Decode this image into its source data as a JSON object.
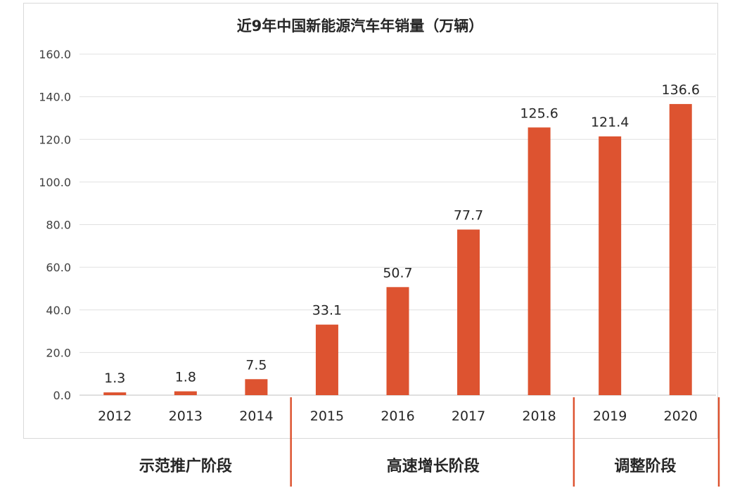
{
  "chart_data": {
    "type": "bar",
    "title": "近9年中国新能源汽车年销量（万辆）",
    "categories": [
      "2012",
      "2013",
      "2014",
      "2015",
      "2016",
      "2017",
      "2018",
      "2019",
      "2020"
    ],
    "values": [
      1.3,
      1.8,
      7.5,
      33.1,
      50.7,
      77.7,
      125.6,
      121.4,
      136.6
    ],
    "data_labels": [
      "1.3",
      "1.8",
      "7.5",
      "33.1",
      "50.7",
      "77.7",
      "125.6",
      "121.4",
      "136.6"
    ],
    "ylim": [
      0,
      160
    ],
    "yticks": [
      "0.0",
      "20.0",
      "40.0",
      "60.0",
      "80.0",
      "100.0",
      "120.0",
      "140.0",
      "160.0"
    ],
    "grid": true,
    "xlabel": "",
    "ylabel": "",
    "bar_color": "#DD5330",
    "phases": [
      {
        "label": "示范推广阶段",
        "start": 0,
        "end": 2
      },
      {
        "label": "高速增长阶段",
        "start": 3,
        "end": 6
      },
      {
        "label": "调整阶段",
        "start": 7,
        "end": 8
      }
    ]
  }
}
